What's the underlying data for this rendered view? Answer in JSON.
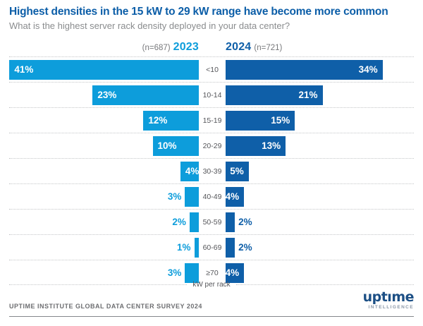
{
  "title": "Highest densities in the 15 kW to 29 kW range have become more common",
  "subtitle": "What is the highest server rack density deployed in your data center?",
  "header": {
    "left_n": "(n=687)",
    "left_year": "2023",
    "right_year": "2024",
    "right_n": "(n=721)"
  },
  "chart_data": {
    "type": "bar",
    "variant": "diverging-horizontal",
    "title": "Highest densities in the 15 kW to 29 kW range have become more common",
    "question": "What is the highest server rack density deployed in your data center?",
    "categories": [
      "<10",
      "10-14",
      "15-19",
      "20-29",
      "30-39",
      "40-49",
      "50-59",
      "60-69",
      "≥70"
    ],
    "series": [
      {
        "name": "2023",
        "n": 687,
        "color": "#0d9ddb",
        "side": "left",
        "values": [
          41,
          23,
          12,
          10,
          4,
          3,
          2,
          1,
          3
        ]
      },
      {
        "name": "2024",
        "n": 721,
        "color": "#0f5fa8",
        "side": "right",
        "values": [
          34,
          21,
          15,
          13,
          5,
          4,
          2,
          2,
          4
        ]
      }
    ],
    "value_suffix": "%",
    "center_axis_label": "kW per rack",
    "xlim": [
      0,
      41
    ],
    "grid": "dotted-row-separators",
    "legend_position": "top"
  },
  "footer": {
    "source": "UPTIME INSTITUTE GLOBAL DATA CENTER SURVEY 2024",
    "logo_text": "uptıme",
    "logo_subtext": "INTELLIGENCE"
  },
  "colors": {
    "accent_2023": "#0d9ddb",
    "accent_2024": "#0f5fa8",
    "title_blue": "#0c5ea8",
    "gray_text": "#6d6e71"
  }
}
